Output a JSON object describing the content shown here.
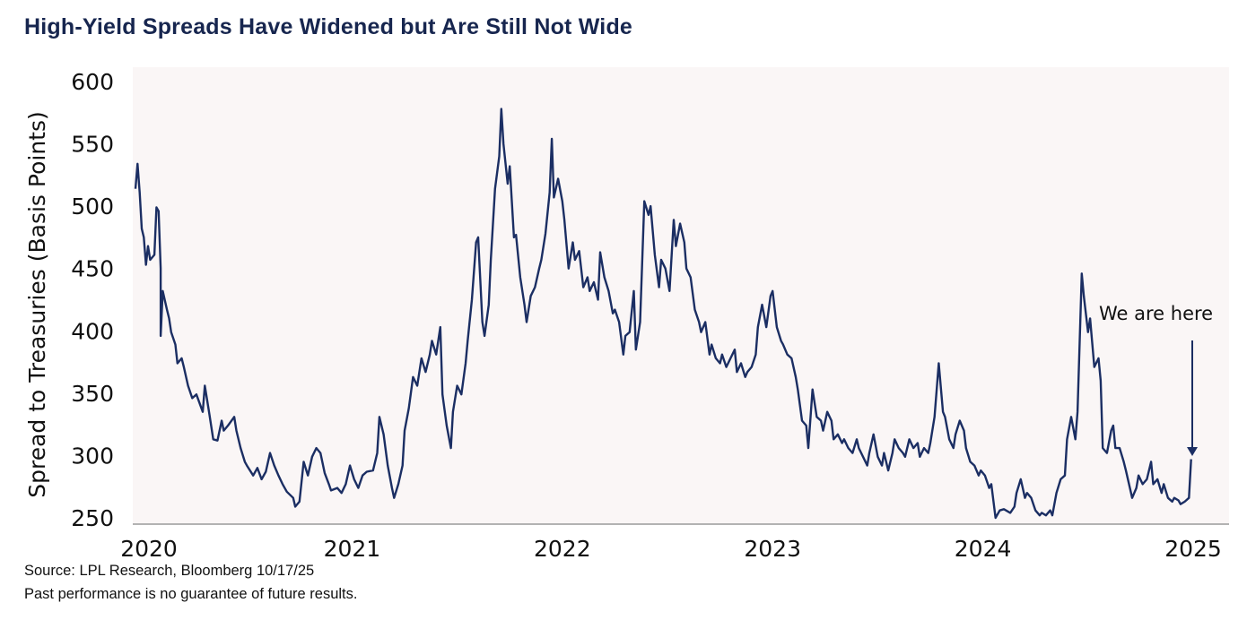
{
  "title": "High-Yield Spreads Have Widened but Are Still Not Wide",
  "footer": {
    "source": "Source: LPL Research, Bloomberg 10/17/25",
    "disclaimer": "Past performance is no guarantee of future results."
  },
  "colors": {
    "line": "#1b2e63",
    "plot_background": "#faf6f6",
    "title": "#17264f"
  },
  "chart_data": {
    "type": "line",
    "title": "High-Yield Spreads Have Widened but Are Still Not Wide",
    "xlabel": "",
    "ylabel": "Spread to Treasuries (Basis Points)",
    "ylim": [
      250,
      600
    ],
    "yticks": [
      "250",
      "300",
      "350",
      "400",
      "450",
      "500",
      "550",
      "600"
    ],
    "xticks": [
      "2020",
      "2021",
      "2022",
      "2023",
      "2024",
      "2025"
    ],
    "grid": false,
    "legend": "none",
    "annotation": {
      "text": "We are here",
      "x": 2024.99,
      "y": 297
    },
    "series": [
      {
        "points": [
          [
            2019.97,
            514
          ],
          [
            2019.98,
            534
          ],
          [
            2019.99,
            511
          ],
          [
            2020.0,
            482
          ],
          [
            2020.01,
            475
          ],
          [
            2020.02,
            453
          ],
          [
            2020.03,
            468
          ],
          [
            2020.04,
            457
          ],
          [
            2020.06,
            461
          ],
          [
            2020.07,
            499
          ],
          [
            2020.08,
            496
          ],
          [
            2020.09,
            450
          ],
          [
            2020.09,
            396
          ],
          [
            2020.1,
            432
          ],
          [
            2020.12,
            417
          ],
          [
            2020.13,
            410
          ],
          [
            2020.14,
            399
          ],
          [
            2020.16,
            389
          ],
          [
            2020.17,
            374
          ],
          [
            2020.19,
            378
          ],
          [
            2020.2,
            371
          ],
          [
            2020.22,
            356
          ],
          [
            2020.24,
            346
          ],
          [
            2020.26,
            349
          ],
          [
            2020.29,
            335
          ],
          [
            2020.3,
            356
          ],
          [
            2020.32,
            335
          ],
          [
            2020.34,
            313
          ],
          [
            2020.36,
            312
          ],
          [
            2020.38,
            328
          ],
          [
            2020.39,
            320
          ],
          [
            2020.41,
            324
          ],
          [
            2020.44,
            331
          ],
          [
            2020.45,
            320
          ],
          [
            2020.47,
            306
          ],
          [
            2020.49,
            295
          ],
          [
            2020.5,
            292
          ],
          [
            2020.53,
            284
          ],
          [
            2020.55,
            290
          ],
          [
            2020.57,
            281
          ],
          [
            2020.59,
            287
          ],
          [
            2020.61,
            302
          ],
          [
            2020.63,
            292
          ],
          [
            2020.65,
            284
          ],
          [
            2020.67,
            277
          ],
          [
            2020.69,
            271
          ],
          [
            2020.72,
            266
          ],
          [
            2020.73,
            259
          ],
          [
            2020.75,
            263
          ],
          [
            2020.77,
            295
          ],
          [
            2020.79,
            284
          ],
          [
            2020.81,
            299
          ],
          [
            2020.83,
            306
          ],
          [
            2020.85,
            302
          ],
          [
            2020.87,
            286
          ],
          [
            2020.89,
            277
          ],
          [
            2020.9,
            272
          ],
          [
            2020.93,
            274
          ],
          [
            2020.95,
            270
          ],
          [
            2020.97,
            277
          ],
          [
            2020.99,
            292
          ],
          [
            2021.01,
            281
          ],
          [
            2021.03,
            274
          ],
          [
            2021.05,
            284
          ],
          [
            2021.07,
            287
          ],
          [
            2021.1,
            288
          ],
          [
            2021.12,
            302
          ],
          [
            2021.13,
            331
          ],
          [
            2021.15,
            317
          ],
          [
            2021.17,
            292
          ],
          [
            2021.19,
            274
          ],
          [
            2021.2,
            266
          ],
          [
            2021.22,
            277
          ],
          [
            2021.24,
            292
          ],
          [
            2021.25,
            320
          ],
          [
            2021.27,
            338
          ],
          [
            2021.29,
            363
          ],
          [
            2021.31,
            356
          ],
          [
            2021.33,
            378
          ],
          [
            2021.35,
            367
          ],
          [
            2021.37,
            381
          ],
          [
            2021.38,
            392
          ],
          [
            2021.4,
            381
          ],
          [
            2021.42,
            403
          ],
          [
            2021.43,
            349
          ],
          [
            2021.45,
            324
          ],
          [
            2021.47,
            306
          ],
          [
            2021.48,
            335
          ],
          [
            2021.5,
            356
          ],
          [
            2021.52,
            349
          ],
          [
            2021.54,
            374
          ],
          [
            2021.55,
            392
          ],
          [
            2021.57,
            425
          ],
          [
            2021.59,
            471
          ],
          [
            2021.6,
            475
          ],
          [
            2021.62,
            407
          ],
          [
            2021.63,
            396
          ],
          [
            2021.65,
            421
          ],
          [
            2021.66,
            457
          ],
          [
            2021.68,
            514
          ],
          [
            2021.7,
            540
          ],
          [
            2021.71,
            578
          ],
          [
            2021.72,
            550
          ],
          [
            2021.74,
            518
          ],
          [
            2021.75,
            532
          ],
          [
            2021.77,
            475
          ],
          [
            2021.78,
            477
          ],
          [
            2021.8,
            443
          ],
          [
            2021.82,
            421
          ],
          [
            2021.83,
            407
          ],
          [
            2021.85,
            428
          ],
          [
            2021.87,
            435
          ],
          [
            2021.89,
            450
          ],
          [
            2021.9,
            457
          ],
          [
            2021.92,
            478
          ],
          [
            2021.94,
            511
          ],
          [
            2021.95,
            554
          ],
          [
            2021.96,
            507
          ],
          [
            2021.98,
            522
          ],
          [
            2022.0,
            504
          ],
          [
            2022.01,
            489
          ],
          [
            2022.03,
            450
          ],
          [
            2022.05,
            471
          ],
          [
            2022.06,
            457
          ],
          [
            2022.08,
            464
          ],
          [
            2022.1,
            435
          ],
          [
            2022.12,
            443
          ],
          [
            2022.13,
            432
          ],
          [
            2022.15,
            439
          ],
          [
            2022.17,
            425
          ],
          [
            2022.18,
            463
          ],
          [
            2022.2,
            443
          ],
          [
            2022.22,
            432
          ],
          [
            2022.24,
            414
          ],
          [
            2022.25,
            417
          ],
          [
            2022.27,
            407
          ],
          [
            2022.29,
            381
          ],
          [
            2022.3,
            396
          ],
          [
            2022.32,
            399
          ],
          [
            2022.34,
            432
          ],
          [
            2022.35,
            385
          ],
          [
            2022.37,
            407
          ],
          [
            2022.39,
            504
          ],
          [
            2022.41,
            493
          ],
          [
            2022.42,
            500
          ],
          [
            2022.44,
            461
          ],
          [
            2022.46,
            435
          ],
          [
            2022.47,
            457
          ],
          [
            2022.49,
            450
          ],
          [
            2022.51,
            432
          ],
          [
            2022.53,
            489
          ],
          [
            2022.54,
            468
          ],
          [
            2022.56,
            486
          ],
          [
            2022.58,
            471
          ],
          [
            2022.59,
            450
          ],
          [
            2022.61,
            443
          ],
          [
            2022.63,
            417
          ],
          [
            2022.65,
            407
          ],
          [
            2022.66,
            399
          ],
          [
            2022.68,
            407
          ],
          [
            2022.7,
            381
          ],
          [
            2022.71,
            389
          ],
          [
            2022.73,
            378
          ],
          [
            2022.75,
            374
          ],
          [
            2022.76,
            381
          ],
          [
            2022.78,
            371
          ],
          [
            2022.8,
            378
          ],
          [
            2022.82,
            385
          ],
          [
            2022.83,
            367
          ],
          [
            2022.85,
            374
          ],
          [
            2022.87,
            363
          ],
          [
            2022.88,
            367
          ],
          [
            2022.9,
            371
          ],
          [
            2022.92,
            381
          ],
          [
            2022.93,
            403
          ],
          [
            2022.95,
            421
          ],
          [
            2022.97,
            403
          ],
          [
            2022.99,
            428
          ],
          [
            2023.0,
            432
          ],
          [
            2023.02,
            403
          ],
          [
            2023.04,
            392
          ],
          [
            2023.05,
            389
          ],
          [
            2023.07,
            381
          ],
          [
            2023.09,
            378
          ],
          [
            2023.11,
            363
          ],
          [
            2023.12,
            353
          ],
          [
            2023.14,
            328
          ],
          [
            2023.16,
            324
          ],
          [
            2023.17,
            306
          ],
          [
            2023.19,
            353
          ],
          [
            2023.21,
            331
          ],
          [
            2023.23,
            328
          ],
          [
            2023.24,
            320
          ],
          [
            2023.26,
            335
          ],
          [
            2023.28,
            328
          ],
          [
            2023.29,
            313
          ],
          [
            2023.31,
            317
          ],
          [
            2023.33,
            310
          ],
          [
            2023.34,
            313
          ],
          [
            2023.36,
            306
          ],
          [
            2023.38,
            302
          ],
          [
            2023.4,
            313
          ],
          [
            2023.41,
            306
          ],
          [
            2023.43,
            299
          ],
          [
            2023.45,
            292
          ],
          [
            2023.46,
            302
          ],
          [
            2023.48,
            317
          ],
          [
            2023.5,
            299
          ],
          [
            2023.52,
            292
          ],
          [
            2023.53,
            302
          ],
          [
            2023.55,
            288
          ],
          [
            2023.57,
            302
          ],
          [
            2023.58,
            313
          ],
          [
            2023.6,
            306
          ],
          [
            2023.62,
            302
          ],
          [
            2023.63,
            299
          ],
          [
            2023.65,
            313
          ],
          [
            2023.67,
            306
          ],
          [
            2023.69,
            310
          ],
          [
            2023.7,
            299
          ],
          [
            2023.72,
            306
          ],
          [
            2023.74,
            302
          ],
          [
            2023.75,
            310
          ],
          [
            2023.77,
            331
          ],
          [
            2023.79,
            374
          ],
          [
            2023.81,
            335
          ],
          [
            2023.82,
            331
          ],
          [
            2023.84,
            313
          ],
          [
            2023.86,
            306
          ],
          [
            2023.87,
            317
          ],
          [
            2023.89,
            328
          ],
          [
            2023.91,
            320
          ],
          [
            2023.92,
            306
          ],
          [
            2023.94,
            295
          ],
          [
            2023.96,
            292
          ],
          [
            2023.98,
            284
          ],
          [
            2023.99,
            288
          ],
          [
            2024.01,
            284
          ],
          [
            2024.03,
            274
          ],
          [
            2024.04,
            277
          ],
          [
            2024.06,
            250
          ],
          [
            2024.08,
            256
          ],
          [
            2024.1,
            257
          ],
          [
            2024.11,
            256
          ],
          [
            2024.13,
            254
          ],
          [
            2024.15,
            259
          ],
          [
            2024.16,
            270
          ],
          [
            2024.18,
            281
          ],
          [
            2024.2,
            266
          ],
          [
            2024.21,
            270
          ],
          [
            2024.23,
            266
          ],
          [
            2024.25,
            256
          ],
          [
            2024.27,
            252
          ],
          [
            2024.28,
            254
          ],
          [
            2024.3,
            252
          ],
          [
            2024.32,
            256
          ],
          [
            2024.33,
            252
          ],
          [
            2024.35,
            270
          ],
          [
            2024.37,
            281
          ],
          [
            2024.39,
            284
          ],
          [
            2024.4,
            313
          ],
          [
            2024.42,
            331
          ],
          [
            2024.44,
            313
          ],
          [
            2024.45,
            335
          ],
          [
            2024.47,
            446
          ],
          [
            2024.48,
            428
          ],
          [
            2024.5,
            399
          ],
          [
            2024.51,
            410
          ],
          [
            2024.53,
            371
          ],
          [
            2024.55,
            378
          ],
          [
            2024.56,
            360
          ],
          [
            2024.57,
            306
          ],
          [
            2024.59,
            302
          ],
          [
            2024.61,
            320
          ],
          [
            2024.62,
            324
          ],
          [
            2024.63,
            306
          ],
          [
            2024.65,
            306
          ],
          [
            2024.67,
            295
          ],
          [
            2024.68,
            288
          ],
          [
            2024.71,
            266
          ],
          [
            2024.73,
            274
          ],
          [
            2024.74,
            284
          ],
          [
            2024.76,
            277
          ],
          [
            2024.78,
            281
          ],
          [
            2024.8,
            295
          ],
          [
            2024.81,
            277
          ],
          [
            2024.83,
            281
          ],
          [
            2024.85,
            270
          ],
          [
            2024.86,
            277
          ],
          [
            2024.88,
            266
          ],
          [
            2024.9,
            263
          ],
          [
            2024.91,
            266
          ],
          [
            2024.93,
            264
          ],
          [
            2024.94,
            261
          ],
          [
            2024.96,
            263
          ],
          [
            2024.98,
            266
          ],
          [
            2024.99,
            297
          ]
        ]
      }
    ]
  }
}
